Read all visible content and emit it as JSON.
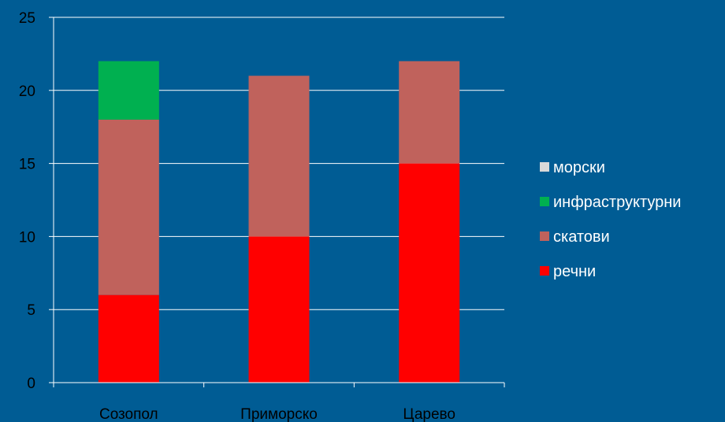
{
  "chart_data": {
    "type": "bar",
    "stacked": true,
    "title": "",
    "xlabel": "",
    "ylabel": "",
    "categories": [
      "Созопол",
      "Приморско",
      "Царево"
    ],
    "ylim": [
      0,
      25
    ],
    "yticks": [
      0,
      5,
      10,
      15,
      20,
      25
    ],
    "grid": true,
    "legend_position": "right",
    "series": [
      {
        "name": "речни",
        "values": [
          6,
          10,
          15
        ],
        "color": "#ff0000"
      },
      {
        "name": "скатови",
        "values": [
          12,
          11,
          7
        ],
        "color": "#c0625c"
      },
      {
        "name": "инфраструктурни",
        "values": [
          4,
          0,
          0
        ],
        "color": "#00b050"
      },
      {
        "name": "морски",
        "values": [
          0,
          0,
          0
        ],
        "color": "#d9d9d9"
      }
    ],
    "legend_order": [
      "морски",
      "инфраструктурни",
      "скатови",
      "речни"
    ]
  }
}
